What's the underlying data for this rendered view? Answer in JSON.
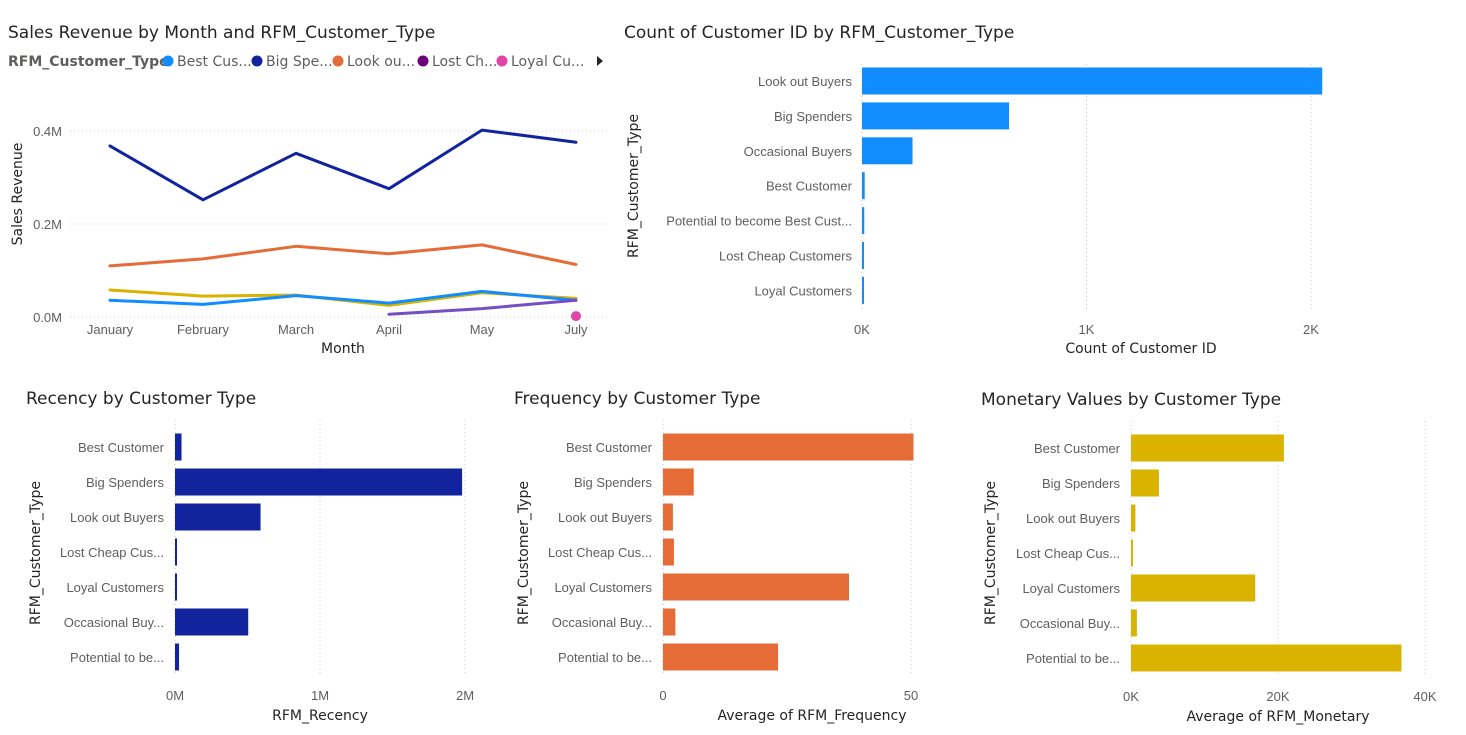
{
  "chart_data": [
    {
      "type": "line",
      "title": "Sales Revenue by Month and RFM_Customer_Type",
      "xlabel": "Month",
      "ylabel": "Sales Revenue",
      "categories": [
        "January",
        "February",
        "March",
        "April",
        "May",
        "July"
      ],
      "y_ticks": [
        "0.0M",
        "0.2M",
        "0.4M"
      ],
      "ylim": [
        0,
        0.4
      ],
      "legend": {
        "title": "RFM_Customer_Type",
        "placement": "top",
        "entries": [
          {
            "label": "Best Cus...",
            "color": "#118dff"
          },
          {
            "label": "Big Spe...",
            "color": "#12239e"
          },
          {
            "label": "Look ou...",
            "color": "#e66c37"
          },
          {
            "label": "Lost Ch...",
            "color": "#6b007b"
          },
          {
            "label": "Loyal Cu...",
            "color": "#e044a7"
          }
        ]
      },
      "series": [
        {
          "color": "#12239e",
          "values": [
            0.368,
            0.252,
            0.352,
            0.276,
            0.402,
            0.376
          ]
        },
        {
          "color": "#e66c37",
          "values": [
            0.11,
            0.125,
            0.152,
            0.136,
            0.155,
            0.113
          ]
        },
        {
          "color": "#d9b300",
          "values": [
            0.058,
            0.045,
            0.047,
            0.025,
            0.052,
            0.04
          ]
        },
        {
          "color": "#118dff",
          "values": [
            0.036,
            0.027,
            0.046,
            0.03,
            0.055,
            0.036
          ]
        },
        {
          "color": "#744ec2",
          "values": [
            null,
            null,
            null,
            0.006,
            0.018,
            0.036
          ]
        },
        {
          "color": "#e044a7",
          "marker_only": true,
          "values": [
            null,
            null,
            null,
            null,
            null,
            0.002
          ]
        }
      ]
    },
    {
      "type": "bar",
      "orientation": "horizontal",
      "title": "Count of Customer ID by RFM_Customer_Type",
      "xlabel": "Count of Customer ID",
      "ylabel": "RFM_Customer_Type",
      "color": "#118dff",
      "categories": [
        "Look out Buyers",
        "Big Spenders",
        "Occasional Buyers",
        "Best Customer",
        "Potential to become Best Cust...",
        "Lost Cheap Customers",
        "Loyal Customers"
      ],
      "values": [
        2050,
        655,
        225,
        12,
        10,
        5,
        4
      ],
      "xlim": [
        0,
        2000
      ],
      "x_ticks": [
        "0K",
        "1K",
        "2K"
      ]
    },
    {
      "type": "bar",
      "orientation": "horizontal",
      "title": "Recency by Customer Type",
      "xlabel": "RFM_Recency",
      "ylabel": "RFM_Customer_Type",
      "color": "#12239e",
      "categories": [
        "Best Customer",
        "Big Spenders",
        "Look out Buyers",
        "Lost Cheap Cus...",
        "Loyal Customers",
        "Occasional Buy...",
        "Potential to be..."
      ],
      "values": [
        45000,
        1980000,
        590000,
        10000,
        10000,
        505000,
        28000
      ],
      "xlim": [
        0,
        2000000
      ],
      "x_ticks": [
        "0M",
        "1M",
        "2M"
      ]
    },
    {
      "type": "bar",
      "orientation": "horizontal",
      "title": "Frequency by Customer Type",
      "xlabel": "Average of RFM_Frequency",
      "ylabel": "RFM_Customer_Type",
      "color": "#e66c37",
      "categories": [
        "Best Customer",
        "Big Spenders",
        "Look out Buyers",
        "Lost Cheap Cus...",
        "Loyal Customers",
        "Occasional Buy...",
        "Potential to be..."
      ],
      "values": [
        50.5,
        6.2,
        2.0,
        2.2,
        37.5,
        2.5,
        23.2
      ],
      "xlim": [
        0,
        50
      ],
      "x_ticks": [
        "0",
        "50"
      ]
    },
    {
      "type": "bar",
      "orientation": "horizontal",
      "title": "Monetary Values by Customer Type",
      "xlabel": "Average of RFM_Monetary",
      "ylabel": "RFM_Customer_Type",
      "color": "#d9b300",
      "categories": [
        "Best Customer",
        "Big Spenders",
        "Look out Buyers",
        "Lost Cheap Cus...",
        "Loyal Customers",
        "Occasional Buy...",
        "Potential to be..."
      ],
      "values": [
        20800,
        3800,
        600,
        200,
        16900,
        800,
        36800
      ],
      "xlim": [
        0,
        40000
      ],
      "x_ticks": [
        "0K",
        "20K",
        "40K"
      ]
    }
  ]
}
